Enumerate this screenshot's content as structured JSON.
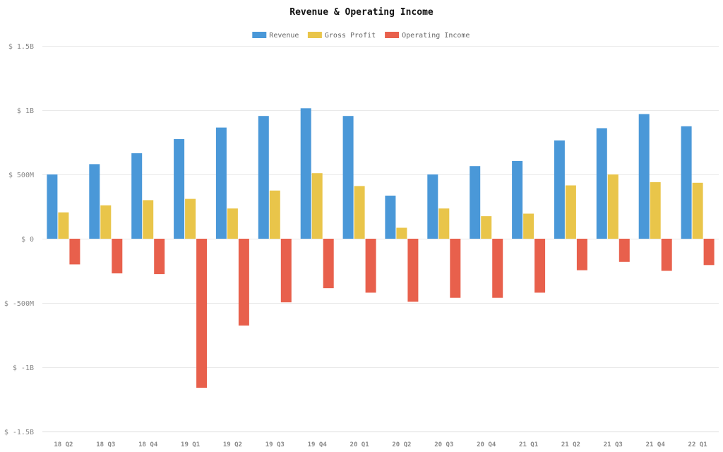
{
  "chart_data": {
    "type": "bar",
    "title": "Revenue & Operating Income",
    "xlabel": "",
    "ylabel": "",
    "categories": [
      "18 Q2",
      "18 Q3",
      "18 Q4",
      "19 Q1",
      "19 Q2",
      "19 Q3",
      "19 Q4",
      "20 Q1",
      "20 Q2",
      "20 Q3",
      "20 Q4",
      "21 Q1",
      "21 Q2",
      "21 Q3",
      "21 Q4",
      "22 Q1"
    ],
    "series": [
      {
        "name": "Revenue",
        "color": "#4a98d8",
        "values": [
          500,
          580,
          665,
          775,
          865,
          955,
          1015,
          955,
          335,
          500,
          565,
          605,
          765,
          860,
          970,
          875
        ]
      },
      {
        "name": "Gross Profit",
        "color": "#e9c54a",
        "values": [
          205,
          260,
          300,
          310,
          235,
          375,
          510,
          410,
          85,
          235,
          175,
          195,
          415,
          500,
          440,
          435
        ]
      },
      {
        "name": "Operating Income",
        "color": "#e8604c",
        "values": [
          -200,
          -270,
          -275,
          -1160,
          -675,
          -495,
          -385,
          -420,
          -490,
          -460,
          -460,
          -420,
          -245,
          -180,
          -250,
          -205
        ]
      }
    ],
    "ylim": [
      -1500,
      1500
    ],
    "yunit": "M",
    "yticks": [
      {
        "value": 1500,
        "label": "$ 1.5B"
      },
      {
        "value": 1000,
        "label": "$ 1B"
      },
      {
        "value": 500,
        "label": "$ 500M"
      },
      {
        "value": 0,
        "label": "$ 0"
      },
      {
        "value": -500,
        "label": "$ -500M"
      },
      {
        "value": -1000,
        "label": "$ -1B"
      },
      {
        "value": -1500,
        "label": "$ -1.5B"
      }
    ],
    "grid": true,
    "legend": "top-center"
  }
}
